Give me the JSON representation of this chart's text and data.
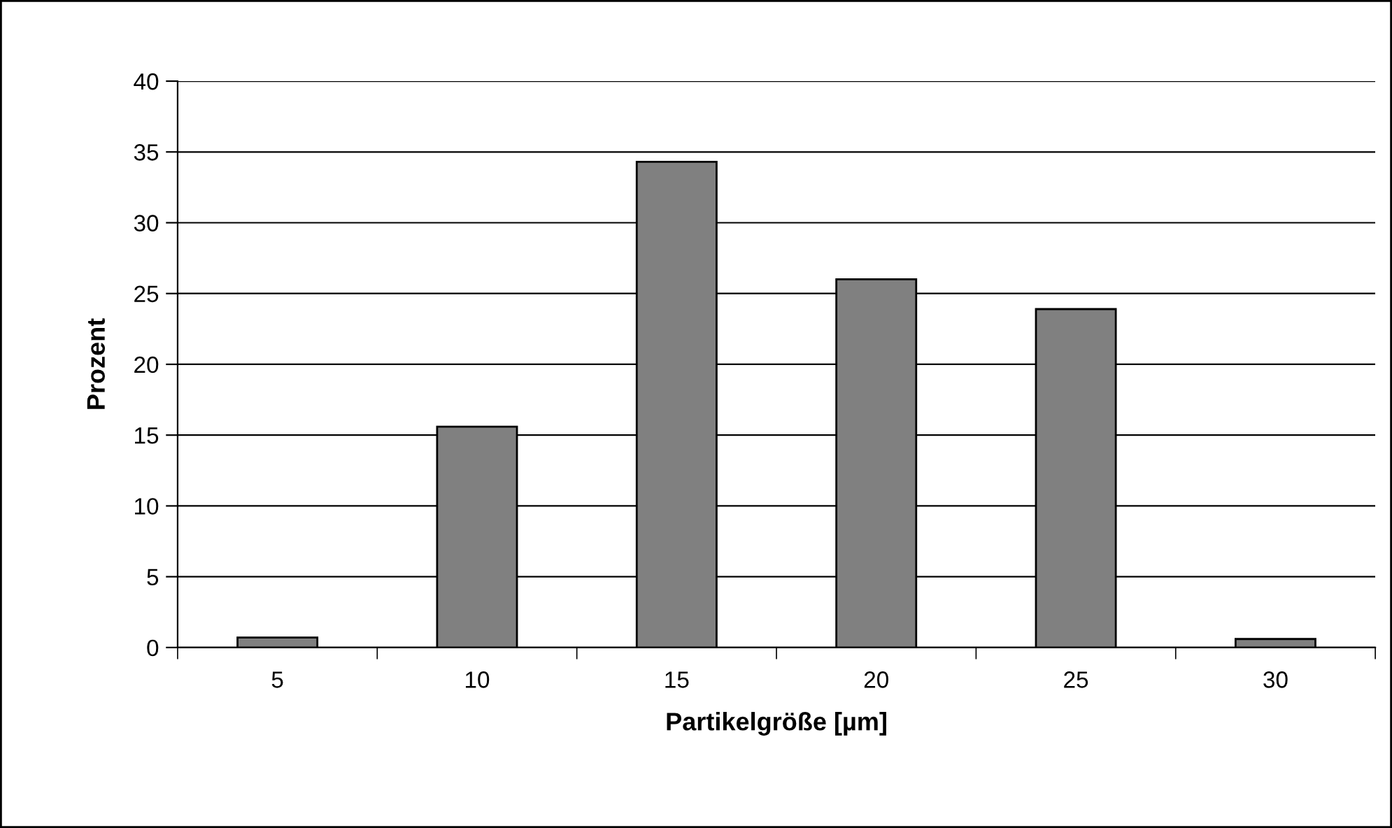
{
  "chart_data": {
    "type": "bar",
    "xlabel": "Partikelgröße [µm]",
    "ylabel": "Prozent",
    "categories": [
      "5",
      "10",
      "15",
      "20",
      "25",
      "30"
    ],
    "values": [
      0.7,
      15.6,
      34.3,
      26.0,
      23.9,
      0.6
    ],
    "color": "#808080",
    "ylim": [
      0,
      40
    ],
    "yticks": [
      0,
      5,
      10,
      15,
      20,
      25,
      30,
      35,
      40
    ],
    "grid": "y",
    "legend": false
  }
}
